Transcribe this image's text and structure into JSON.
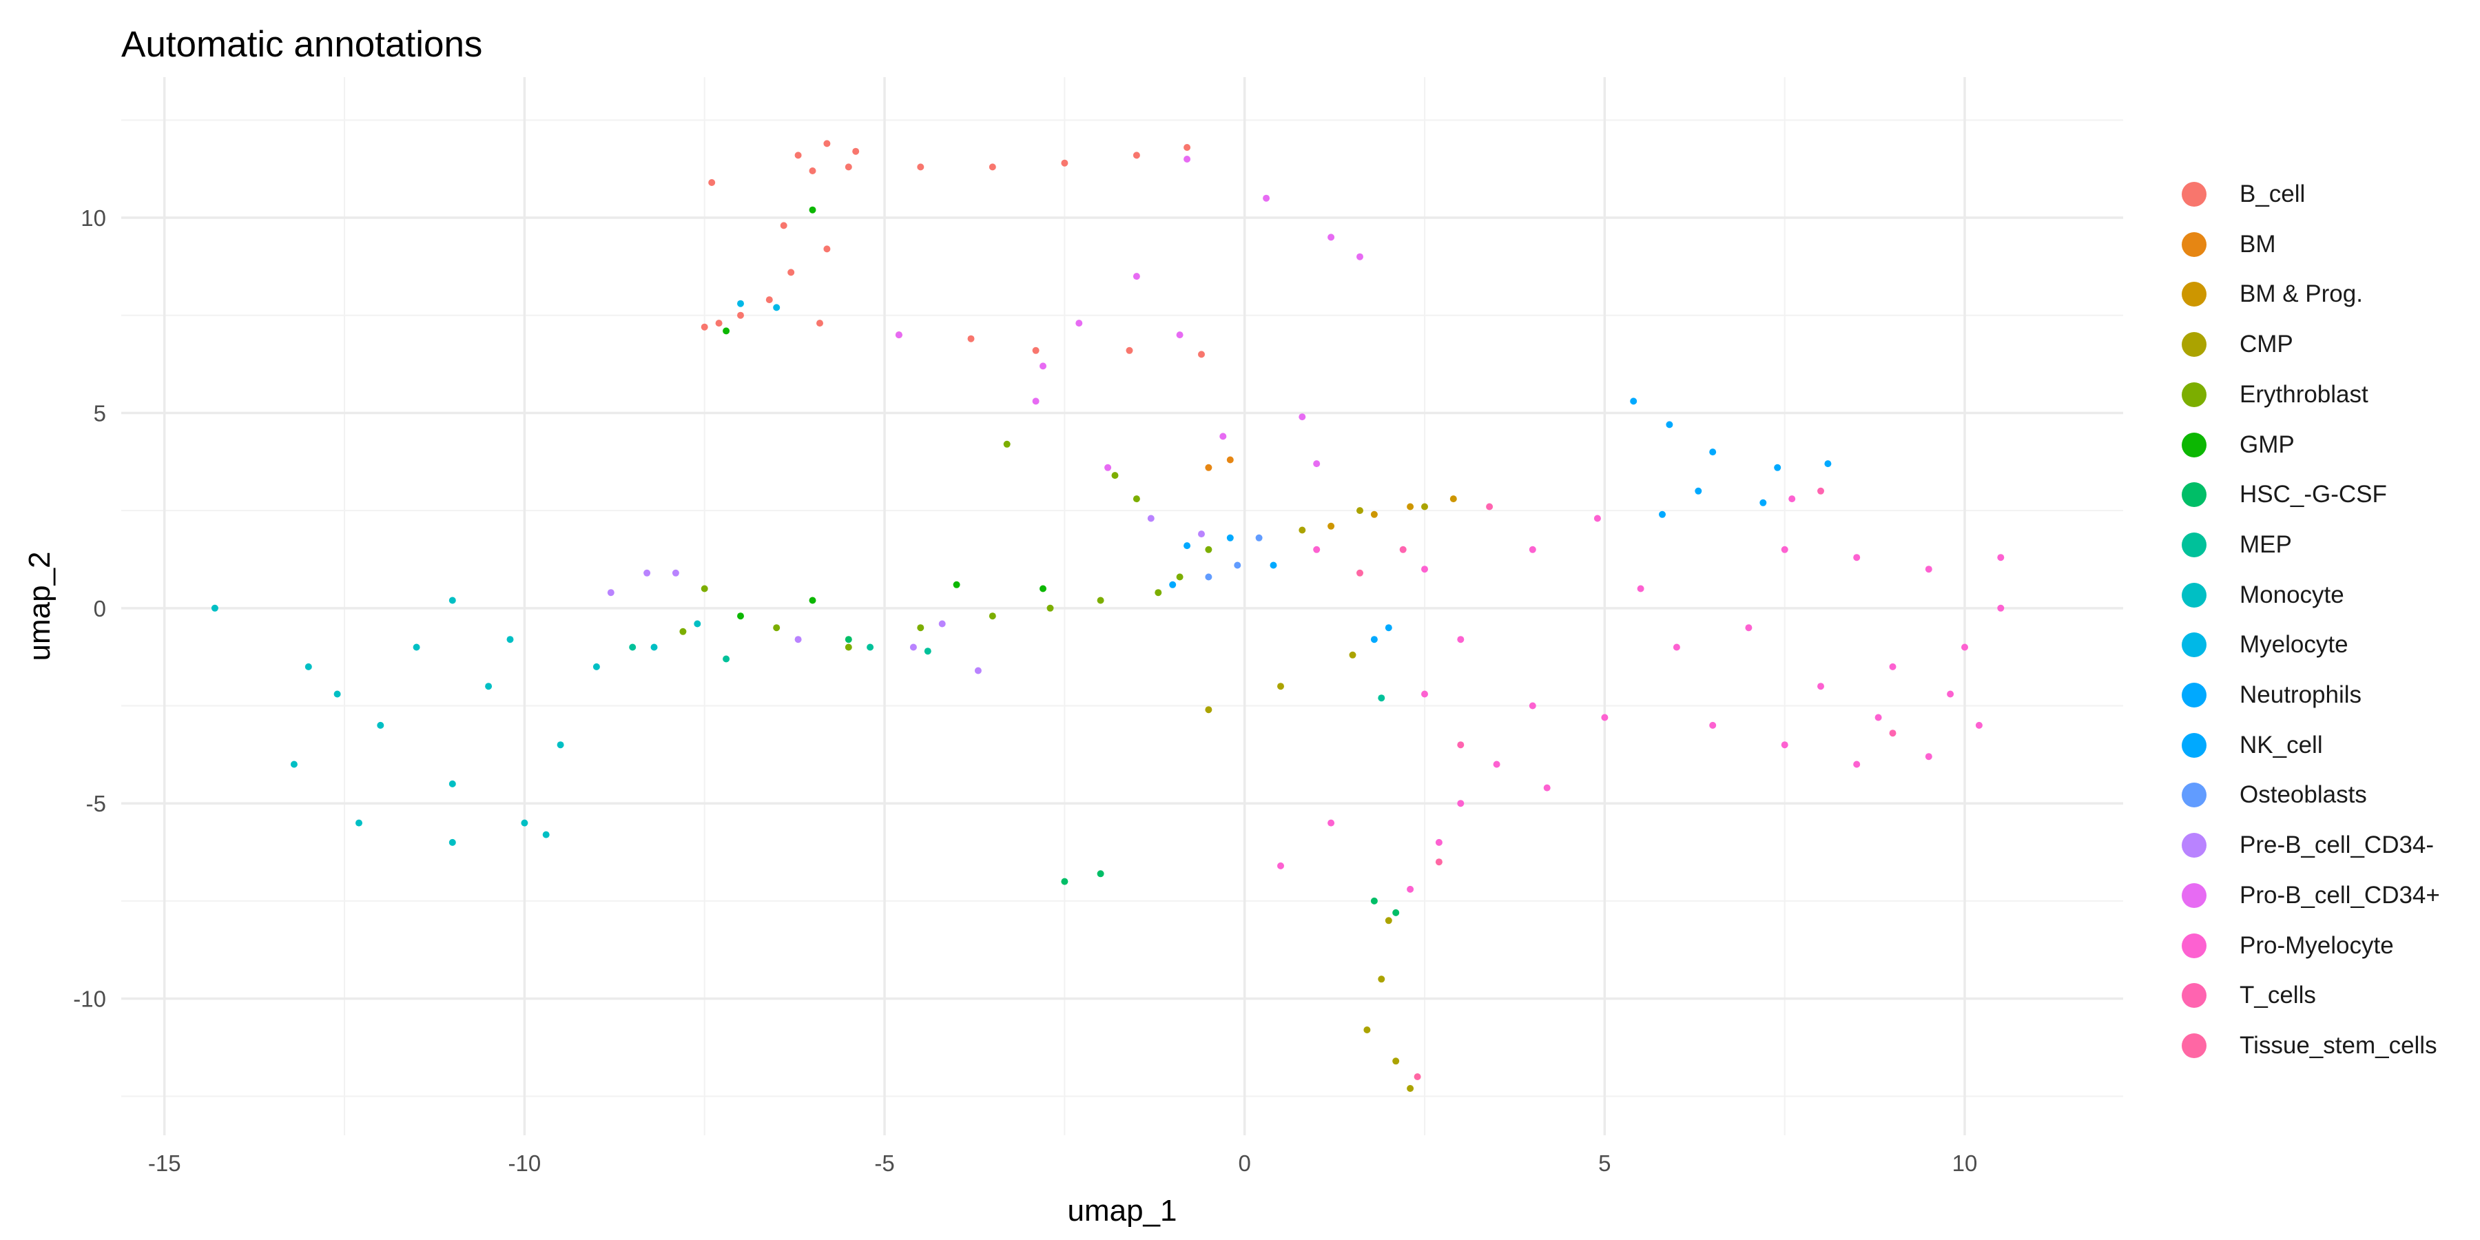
{
  "chart_data": {
    "type": "scatter",
    "title": "Automatic annotations",
    "xlabel": "umap_1",
    "ylabel": "umap_2",
    "xlim": [
      -15.6,
      12.2
    ],
    "ylim": [
      -13.5,
      13.6
    ],
    "x_ticks": [
      -15,
      -10,
      -5,
      0,
      5,
      10
    ],
    "y_ticks": [
      -10,
      -5,
      0,
      5,
      10
    ],
    "grid": true,
    "legend_position": "right",
    "series": [
      {
        "name": "B_cell",
        "color": "#F8766D",
        "values": [
          [
            -6.2,
            11.6
          ],
          [
            -5.8,
            11.9
          ],
          [
            -5.4,
            11.7
          ],
          [
            -6.0,
            11.2
          ],
          [
            -5.5,
            11.3
          ],
          [
            -4.5,
            11.3
          ],
          [
            -3.5,
            11.3
          ],
          [
            -2.5,
            11.4
          ],
          [
            -1.5,
            11.6
          ],
          [
            -0.8,
            11.8
          ],
          [
            -6.4,
            9.8
          ],
          [
            -5.8,
            9.2
          ],
          [
            -6.3,
            8.6
          ],
          [
            -6.6,
            7.9
          ],
          [
            -7.0,
            7.5
          ],
          [
            -7.3,
            7.3
          ],
          [
            -7.5,
            7.2
          ],
          [
            -5.9,
            7.3
          ],
          [
            -4.8,
            7.0
          ],
          [
            -3.8,
            6.9
          ],
          [
            -2.9,
            6.6
          ],
          [
            -1.6,
            6.6
          ],
          [
            -0.6,
            6.5
          ],
          [
            -7.4,
            10.9
          ]
        ]
      },
      {
        "name": "BM",
        "color": "#E68613",
        "values": [
          [
            -0.2,
            3.8
          ],
          [
            -0.5,
            3.6
          ]
        ]
      },
      {
        "name": "BM & Prog.",
        "color": "#CD9600",
        "values": [
          [
            1.8,
            2.4
          ],
          [
            2.3,
            2.6
          ],
          [
            2.9,
            2.8
          ],
          [
            1.2,
            2.1
          ]
        ]
      },
      {
        "name": "CMP",
        "color": "#ABA300",
        "values": [
          [
            0.8,
            2.0
          ],
          [
            1.6,
            2.5
          ],
          [
            2.5,
            2.6
          ],
          [
            -0.5,
            -2.6
          ],
          [
            0.5,
            -2.0
          ],
          [
            1.5,
            -1.2
          ],
          [
            2.0,
            -8.0
          ],
          [
            1.9,
            -9.5
          ],
          [
            1.7,
            -10.8
          ],
          [
            2.1,
            -11.6
          ],
          [
            2.3,
            -12.3
          ]
        ]
      },
      {
        "name": "Erythroblast",
        "color": "#7CAE00",
        "values": [
          [
            -7.5,
            0.5
          ],
          [
            -6.5,
            -0.5
          ],
          [
            -5.5,
            -1.0
          ],
          [
            -4.5,
            -0.5
          ],
          [
            -3.5,
            -0.2
          ],
          [
            -2.7,
            0.0
          ],
          [
            -2.0,
            0.2
          ],
          [
            -1.2,
            0.4
          ],
          [
            -1.5,
            2.8
          ],
          [
            -0.5,
            1.5
          ],
          [
            -3.3,
            4.2
          ],
          [
            -1.8,
            3.4
          ],
          [
            -0.9,
            0.8
          ],
          [
            -7.8,
            -0.6
          ]
        ]
      },
      {
        "name": "GMP",
        "color": "#0CB702",
        "values": [
          [
            -7.0,
            -0.2
          ],
          [
            -6.0,
            0.2
          ],
          [
            -4.0,
            0.6
          ],
          [
            -2.8,
            0.5
          ],
          [
            -6.0,
            10.2
          ],
          [
            -7.2,
            7.1
          ]
        ]
      },
      {
        "name": "HSC_-G-CSF",
        "color": "#00BE67",
        "values": [
          [
            -2.5,
            -7.0
          ],
          [
            -2.0,
            -6.8
          ],
          [
            1.8,
            -7.5
          ],
          [
            2.1,
            -7.8
          ],
          [
            -5.5,
            -0.8
          ]
        ]
      },
      {
        "name": "MEP",
        "color": "#00C19A",
        "values": [
          [
            -8.5,
            -1.0
          ],
          [
            -7.2,
            -1.3
          ],
          [
            -5.2,
            -1.0
          ],
          [
            -4.4,
            -1.1
          ],
          [
            1.9,
            -2.3
          ]
        ]
      },
      {
        "name": "Monocyte",
        "color": "#00BFC4",
        "values": [
          [
            -14.3,
            0.0
          ],
          [
            -13.0,
            -1.5
          ],
          [
            -12.0,
            -3.0
          ],
          [
            -11.0,
            -4.5
          ],
          [
            -10.0,
            -5.5
          ],
          [
            -13.2,
            -4.0
          ],
          [
            -12.3,
            -5.5
          ],
          [
            -11.0,
            -6.0
          ],
          [
            -11.5,
            -1.0
          ],
          [
            -10.5,
            -2.0
          ],
          [
            -9.5,
            -3.5
          ],
          [
            -9.0,
            -1.5
          ],
          [
            -11.0,
            0.2
          ],
          [
            -8.2,
            -1.0
          ],
          [
            -7.6,
            -0.4
          ],
          [
            -9.7,
            -5.8
          ],
          [
            -12.6,
            -2.2
          ],
          [
            -10.2,
            -0.8
          ]
        ]
      },
      {
        "name": "Myelocyte",
        "color": "#00B8E7",
        "values": [
          [
            -7.0,
            7.8
          ],
          [
            -6.5,
            7.7
          ]
        ]
      },
      {
        "name": "Neutrophils",
        "color": "#00A9FF",
        "values": [
          [
            5.4,
            5.3
          ],
          [
            5.9,
            4.7
          ],
          [
            6.5,
            4.0
          ],
          [
            7.4,
            3.6
          ],
          [
            8.1,
            3.7
          ],
          [
            6.3,
            3.0
          ],
          [
            5.8,
            2.4
          ],
          [
            7.2,
            2.7
          ]
        ]
      },
      {
        "name": "NK_cell",
        "color": "#00A9FF",
        "values": [
          [
            -0.8,
            1.6
          ],
          [
            -0.2,
            1.8
          ],
          [
            0.4,
            1.1
          ],
          [
            1.8,
            -0.8
          ],
          [
            -1.0,
            0.6
          ],
          [
            2.0,
            -0.5
          ]
        ]
      },
      {
        "name": "Osteoblasts",
        "color": "#619CFF",
        "values": [
          [
            -0.5,
            0.8
          ],
          [
            0.2,
            1.8
          ],
          [
            -0.1,
            1.1
          ]
        ]
      },
      {
        "name": "Pre-B_cell_CD34-",
        "color": "#B983FF",
        "values": [
          [
            -8.8,
            0.4
          ],
          [
            -7.9,
            0.9
          ],
          [
            -6.2,
            -0.8
          ],
          [
            -4.6,
            -1.0
          ],
          [
            -3.7,
            -1.6
          ],
          [
            -1.3,
            2.3
          ],
          [
            -0.6,
            1.9
          ],
          [
            -8.3,
            0.9
          ],
          [
            -4.2,
            -0.4
          ]
        ]
      },
      {
        "name": "Pro-B_cell_CD34+",
        "color": "#E76BF3",
        "values": [
          [
            -0.8,
            11.5
          ],
          [
            0.3,
            10.5
          ],
          [
            1.2,
            9.5
          ],
          [
            1.6,
            9.0
          ],
          [
            -1.5,
            8.5
          ],
          [
            -2.3,
            7.3
          ],
          [
            -2.8,
            6.2
          ],
          [
            -2.9,
            5.3
          ],
          [
            -1.9,
            3.6
          ],
          [
            -0.9,
            7.0
          ],
          [
            0.8,
            4.9
          ],
          [
            1.0,
            3.7
          ],
          [
            -0.3,
            4.4
          ],
          [
            -4.8,
            7.0
          ]
        ]
      },
      {
        "name": "Pro-Myelocyte",
        "color": "#FD61D1",
        "values": [
          [
            1.0,
            1.5
          ],
          [
            2.5,
            1.0
          ],
          [
            4.0,
            1.5
          ],
          [
            5.5,
            0.5
          ],
          [
            7.0,
            -0.5
          ],
          [
            7.5,
            1.5
          ],
          [
            8.5,
            1.3
          ],
          [
            9.5,
            1.0
          ],
          [
            10.5,
            1.3
          ],
          [
            6.5,
            -3.0
          ],
          [
            7.5,
            -3.5
          ],
          [
            8.5,
            -4.0
          ],
          [
            9.5,
            -3.8
          ],
          [
            10.2,
            -3.0
          ],
          [
            8.0,
            -2.0
          ],
          [
            9.0,
            -1.5
          ],
          [
            10.0,
            -1.0
          ],
          [
            8.8,
            -2.8
          ],
          [
            9.8,
            -2.2
          ],
          [
            10.5,
            0.0
          ],
          [
            3.0,
            -0.8
          ],
          [
            2.5,
            -2.2
          ],
          [
            3.5,
            -4.0
          ],
          [
            3.0,
            -5.0
          ],
          [
            2.7,
            -6.0
          ],
          [
            2.3,
            -7.2
          ],
          [
            4.0,
            -2.5
          ],
          [
            5.0,
            -2.8
          ],
          [
            1.2,
            -5.5
          ],
          [
            0.5,
            -6.6
          ],
          [
            4.2,
            -4.6
          ],
          [
            6.0,
            -1.0
          ],
          [
            7.6,
            2.8
          ],
          [
            4.9,
            2.3
          ]
        ]
      },
      {
        "name": "T_cells",
        "color": "#FF64B0",
        "values": [
          [
            2.2,
            1.5
          ],
          [
            3.4,
            2.6
          ],
          [
            8.0,
            3.0
          ],
          [
            9.0,
            -3.2
          ],
          [
            3.0,
            -3.5
          ]
        ]
      },
      {
        "name": "Tissue_stem_cells",
        "color": "#FF67A4",
        "values": [
          [
            1.6,
            0.9
          ],
          [
            2.7,
            -6.5
          ],
          [
            2.4,
            -12.0
          ]
        ]
      }
    ]
  }
}
